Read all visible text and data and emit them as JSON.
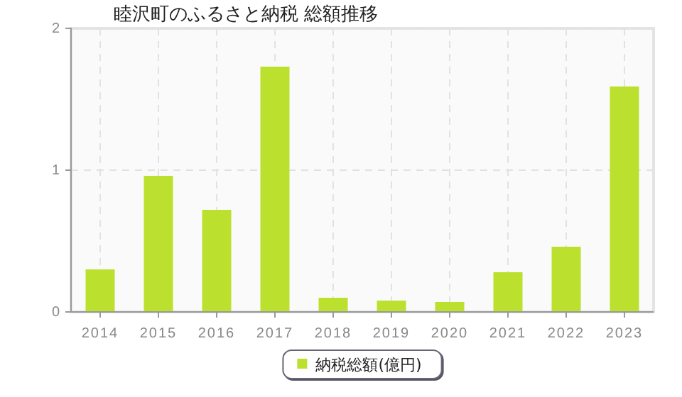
{
  "chart_data": {
    "type": "bar",
    "title": "睦沢町のふるさと納税  総額推移",
    "categories": [
      "2014",
      "2015",
      "2016",
      "2017",
      "2018",
      "2019",
      "2020",
      "2021",
      "2022",
      "2023"
    ],
    "series": [
      {
        "name": "納税総額(億円)",
        "color": "#bce02e",
        "values": [
          0.3,
          0.96,
          0.72,
          1.73,
          0.1,
          0.08,
          0.07,
          0.28,
          0.46,
          1.59
        ]
      }
    ],
    "ylim": [
      0,
      2
    ],
    "yticks": [
      0,
      1,
      2
    ],
    "grid": true,
    "legend": "bottom"
  }
}
